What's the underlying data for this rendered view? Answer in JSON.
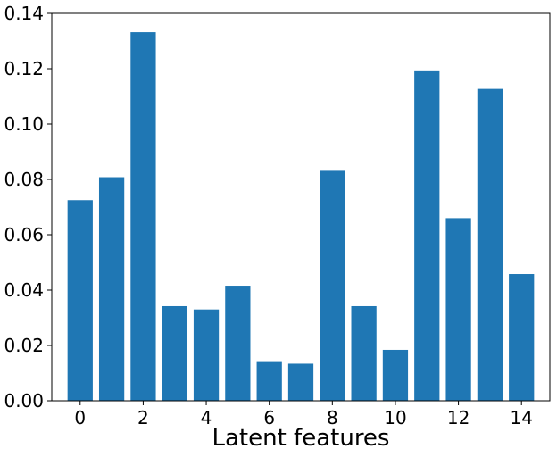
{
  "chart_data": {
    "type": "bar",
    "categories": [
      "0",
      "1",
      "2",
      "3",
      "4",
      "5",
      "6",
      "7",
      "8",
      "9",
      "10",
      "11",
      "12",
      "13",
      "14"
    ],
    "values": [
      0.0725,
      0.0808,
      0.1332,
      0.0342,
      0.033,
      0.0416,
      0.014,
      0.0134,
      0.0831,
      0.0342,
      0.0184,
      0.1194,
      0.066,
      0.1127,
      0.0458
    ],
    "title": "",
    "xlabel": "Latent features",
    "ylabel": "",
    "ylim": [
      0,
      0.14
    ],
    "xlim": [
      -0.9,
      14.9
    ],
    "x_ticks": [
      0,
      2,
      4,
      6,
      8,
      10,
      12,
      14
    ],
    "y_ticks": [
      0.0,
      0.02,
      0.04,
      0.06,
      0.08,
      0.1,
      0.12,
      0.14
    ],
    "x_tick_labels": [
      "0",
      "2",
      "4",
      "6",
      "8",
      "10",
      "12",
      "14"
    ],
    "y_tick_labels": [
      "0.00",
      "0.02",
      "0.04",
      "0.06",
      "0.08",
      "0.10",
      "0.12",
      "0.14"
    ],
    "bar_color": "#1f77b4",
    "grid": false,
    "legend": "none"
  }
}
